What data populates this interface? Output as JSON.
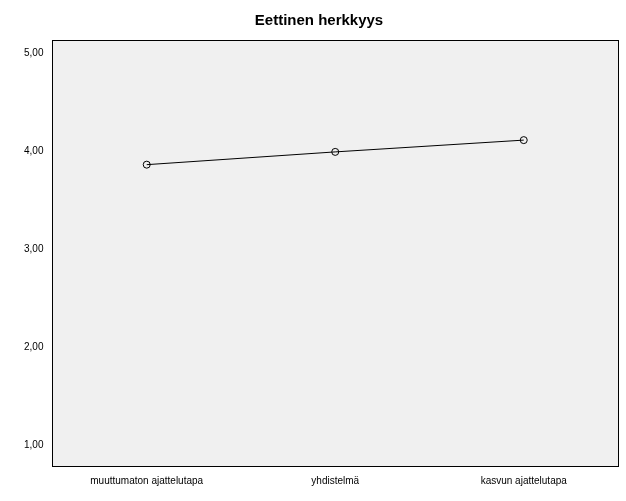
{
  "chart_data": {
    "type": "line",
    "title": "Eettinen herkkyys",
    "categories": [
      "muuttumaton ajattelutapa",
      "yhdistelmä",
      "kasvun ajattelutapa"
    ],
    "values": [
      3.86,
      3.99,
      4.11
    ],
    "color": "#000000",
    "marker": "circle",
    "line_style": "solid",
    "ylim": [
      0.79,
      5.13
    ],
    "yticks": [
      {
        "value": 1,
        "label": "1,00"
      },
      {
        "value": 2,
        "label": "2,00"
      },
      {
        "value": 3,
        "label": "3,00"
      },
      {
        "value": 4,
        "label": "4,00"
      },
      {
        "value": 5,
        "label": "5,00"
      }
    ],
    "grid": false
  }
}
